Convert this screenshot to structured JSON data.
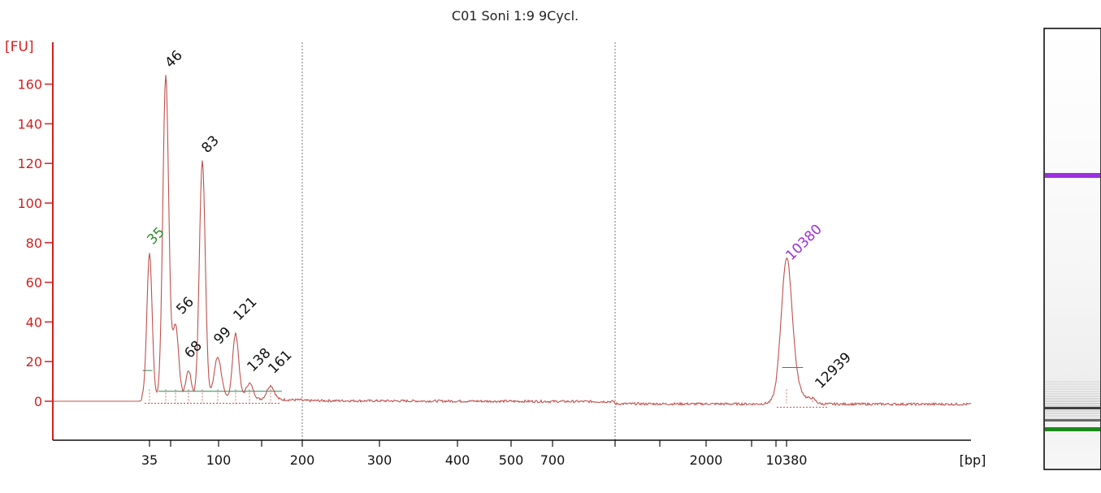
{
  "chart_data": {
    "type": "line",
    "title": "C01 Soni 1:9 9Cycl.",
    "ylabel": "[FU]",
    "xlabel": "[bp]",
    "ylim": [
      -20,
      170
    ],
    "y_ticks": [
      0,
      20,
      40,
      60,
      80,
      100,
      120,
      140,
      160
    ],
    "x_scale": "nonlinear-sizing-ladder",
    "x_ticks": [
      {
        "label": "35",
        "bp": 35
      },
      {
        "label": "100",
        "bp": 100
      },
      {
        "label": "200",
        "bp": 200
      },
      {
        "label": "300",
        "bp": 300
      },
      {
        "label": "400",
        "bp": 400
      },
      {
        "label": "500",
        "bp": 500
      },
      {
        "label": "700",
        "bp": 700
      },
      {
        "label": "2000",
        "bp": 2000
      },
      {
        "label": "10380",
        "bp": 10380
      }
    ],
    "unlabeled_ticks_bp": [
      50,
      150,
      1000,
      1500,
      3000,
      7000
    ],
    "region_markers_bp": [
      200,
      1000
    ],
    "colors": {
      "axis": "#d42020",
      "trace": "#c0504d",
      "lower_marker": "#2e8b2e",
      "upper_marker": "#9b30e0",
      "peak_label": "#111111",
      "baseline_segment": "#2e8b57"
    },
    "peaks": [
      {
        "label": "35",
        "bp": 35,
        "fu": 73,
        "role": "lower_marker",
        "label_color": "#2e8b2e"
      },
      {
        "label": "46",
        "bp": 46,
        "fu": 163,
        "role": "peak"
      },
      {
        "label": "56",
        "bp": 56,
        "fu": 37,
        "role": "peak"
      },
      {
        "label": "68",
        "bp": 68,
        "fu": 14,
        "role": "peak"
      },
      {
        "label": "83",
        "bp": 83,
        "fu": 120,
        "role": "peak"
      },
      {
        "label": "99",
        "bp": 99,
        "fu": 21,
        "role": "peak"
      },
      {
        "label": "121",
        "bp": 121,
        "fu": 33,
        "role": "peak"
      },
      {
        "label": "138",
        "bp": 138,
        "fu": 8,
        "role": "peak"
      },
      {
        "label": "161",
        "bp": 161,
        "fu": 7,
        "role": "peak"
      },
      {
        "label": "10380",
        "bp": 10380,
        "fu": 65,
        "role": "upper_marker",
        "label_color": "#9b30e0"
      },
      {
        "label": "12939",
        "bp": 12939,
        "fu": 2,
        "role": "peak"
      }
    ],
    "gel_lane": {
      "bands": [
        {
          "name": "upper-marker-band",
          "color": "#9b30e0",
          "intensity": 1.0
        },
        {
          "name": "sample-band-1",
          "color": "#222222",
          "intensity": 0.85
        },
        {
          "name": "sample-band-2",
          "color": "#333333",
          "intensity": 0.7
        },
        {
          "name": "lower-marker-band",
          "color": "#1a8a1a",
          "intensity": 1.0
        }
      ]
    }
  }
}
